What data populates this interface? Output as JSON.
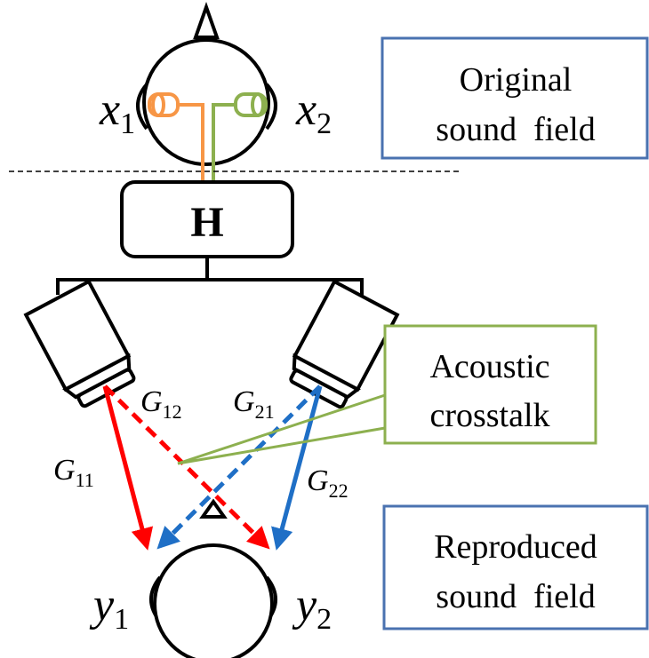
{
  "original_box": {
    "lines": [
      "Original",
      "sound  field"
    ]
  },
  "reproduced_box": {
    "lines": [
      "Reproduced",
      "sound  field"
    ]
  },
  "crosstalk_box": {
    "lines": [
      "Acoustic",
      "crosstalk"
    ]
  },
  "filter": {
    "label": "H"
  },
  "inputs": [
    {
      "symbol": "x",
      "subscript": "1"
    },
    {
      "symbol": "x",
      "subscript": "2"
    }
  ],
  "outputs": [
    {
      "symbol": "y",
      "subscript": "1"
    },
    {
      "symbol": "y",
      "subscript": "2"
    }
  ],
  "paths": [
    {
      "symbol": "G",
      "subscript": "11"
    },
    {
      "symbol": "G",
      "subscript": "12"
    },
    {
      "symbol": "G",
      "subscript": "21"
    },
    {
      "symbol": "G",
      "subscript": "22"
    }
  ]
}
